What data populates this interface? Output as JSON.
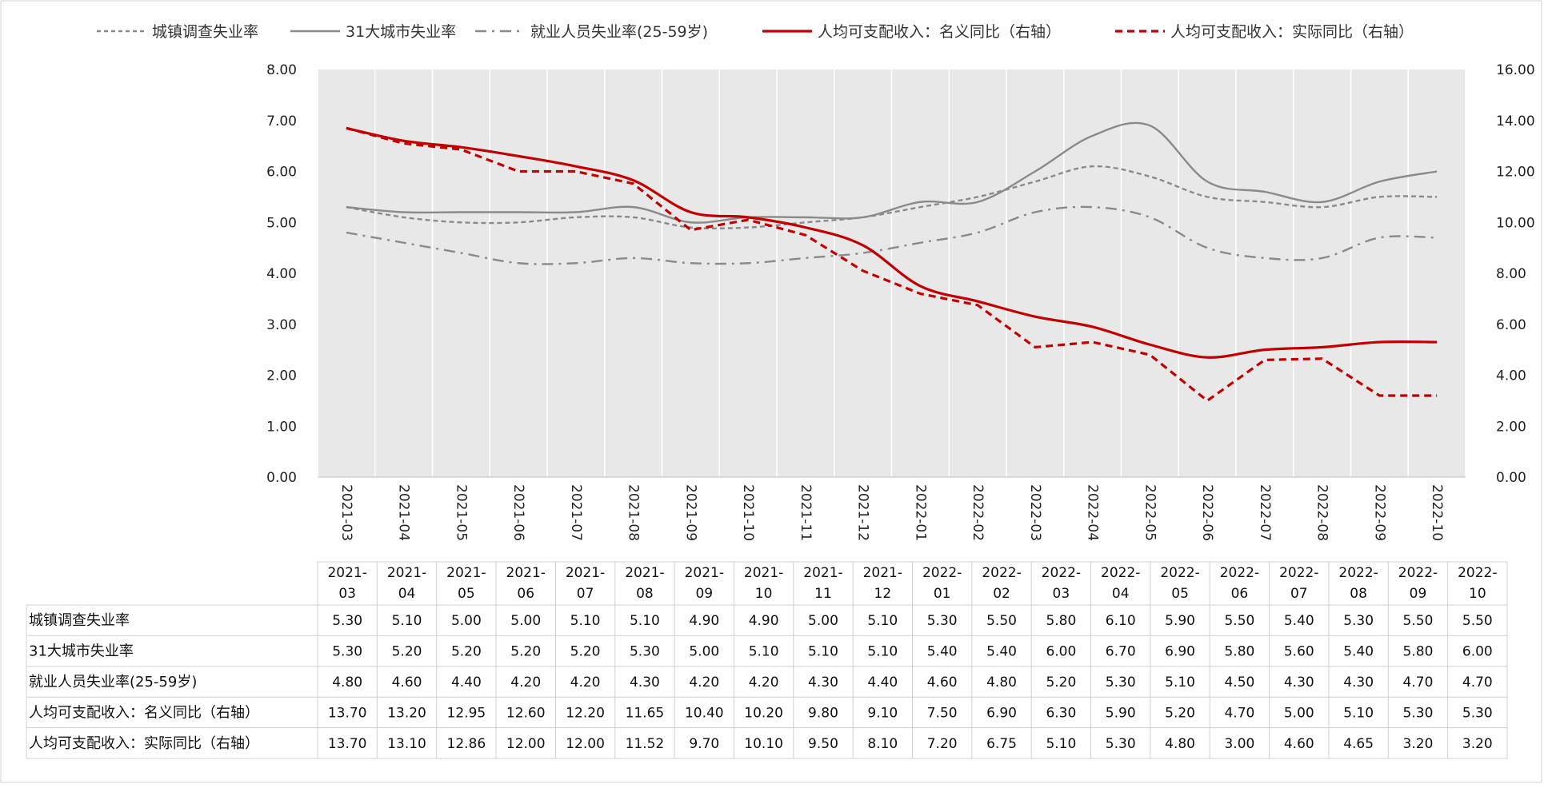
{
  "chart_data": {
    "type": "line",
    "categories": [
      "2021-03",
      "2021-04",
      "2021-05",
      "2021-06",
      "2021-07",
      "2021-08",
      "2021-09",
      "2021-10",
      "2021-11",
      "2021-12",
      "2022-01",
      "2022-02",
      "2022-03",
      "2022-04",
      "2022-05",
      "2022-06",
      "2022-07",
      "2022-08",
      "2022-09",
      "2022-10"
    ],
    "categories_table": [
      [
        "2021-",
        "03"
      ],
      [
        "2021-",
        "04"
      ],
      [
        "2021-",
        "05"
      ],
      [
        "2021-",
        "06"
      ],
      [
        "2021-",
        "07"
      ],
      [
        "2021-",
        "08"
      ],
      [
        "2021-",
        "09"
      ],
      [
        "2021-",
        "10"
      ],
      [
        "2021-",
        "11"
      ],
      [
        "2021-",
        "12"
      ],
      [
        "2022-",
        "01"
      ],
      [
        "2022-",
        "02"
      ],
      [
        "2022-",
        "03"
      ],
      [
        "2022-",
        "04"
      ],
      [
        "2022-",
        "05"
      ],
      [
        "2022-",
        "06"
      ],
      [
        "2022-",
        "07"
      ],
      [
        "2022-",
        "08"
      ],
      [
        "2022-",
        "09"
      ],
      [
        "2022-",
        "10"
      ]
    ],
    "series": [
      {
        "name": "城镇调查失业率",
        "axis": "left",
        "style": "dashed",
        "color": "#8a8a8a",
        "values": [
          5.3,
          5.1,
          5.0,
          5.0,
          5.1,
          5.1,
          4.9,
          4.9,
          5.0,
          5.1,
          5.3,
          5.5,
          5.8,
          6.1,
          5.9,
          5.5,
          5.4,
          5.3,
          5.5,
          5.5
        ],
        "labels": [
          "5.30",
          "5.10",
          "5.00",
          "5.00",
          "5.10",
          "5.10",
          "4.90",
          "4.90",
          "5.00",
          "5.10",
          "5.30",
          "5.50",
          "5.80",
          "6.10",
          "5.90",
          "5.50",
          "5.40",
          "5.30",
          "5.50",
          "5.50"
        ]
      },
      {
        "name": "31大城市失业率",
        "axis": "left",
        "style": "solid",
        "color": "#8a8a8a",
        "values": [
          5.3,
          5.2,
          5.2,
          5.2,
          5.2,
          5.3,
          5.0,
          5.1,
          5.1,
          5.1,
          5.4,
          5.4,
          6.0,
          6.7,
          6.9,
          5.8,
          5.6,
          5.4,
          5.8,
          6.0
        ],
        "labels": [
          "5.30",
          "5.20",
          "5.20",
          "5.20",
          "5.20",
          "5.30",
          "5.00",
          "5.10",
          "5.10",
          "5.10",
          "5.40",
          "5.40",
          "6.00",
          "6.70",
          "6.90",
          "5.80",
          "5.60",
          "5.40",
          "5.80",
          "6.00"
        ]
      },
      {
        "name": "就业人员失业率(25-59岁)",
        "axis": "left",
        "style": "dashdot",
        "color": "#8a8a8a",
        "values": [
          4.8,
          4.6,
          4.4,
          4.2,
          4.2,
          4.3,
          4.2,
          4.2,
          4.3,
          4.4,
          4.6,
          4.8,
          5.2,
          5.3,
          5.1,
          4.5,
          4.3,
          4.3,
          4.7,
          4.7
        ],
        "labels": [
          "4.80",
          "4.60",
          "4.40",
          "4.20",
          "4.20",
          "4.30",
          "4.20",
          "4.20",
          "4.30",
          "4.40",
          "4.60",
          "4.80",
          "5.20",
          "5.30",
          "5.10",
          "4.50",
          "4.30",
          "4.30",
          "4.70",
          "4.70"
        ]
      },
      {
        "name": "人均可支配收入：名义同比（右轴）",
        "axis": "right",
        "style": "solid",
        "color": "#c00000",
        "values": [
          13.7,
          13.2,
          12.95,
          12.6,
          12.2,
          11.65,
          10.4,
          10.2,
          9.8,
          9.1,
          7.5,
          6.9,
          6.3,
          5.9,
          5.2,
          4.7,
          5.0,
          5.1,
          5.3,
          5.3
        ],
        "labels": [
          "13.70",
          "13.20",
          "12.95",
          "12.60",
          "12.20",
          "11.65",
          "10.40",
          "10.20",
          "9.80",
          "9.10",
          "7.50",
          "6.90",
          "6.30",
          "5.90",
          "5.20",
          "4.70",
          "5.00",
          "5.10",
          "5.30",
          "5.30"
        ]
      },
      {
        "name": "人均可支配收入：实际同比（右轴）",
        "axis": "right",
        "style": "dashed",
        "color": "#c00000",
        "values": [
          13.7,
          13.1,
          12.86,
          12.0,
          12.0,
          11.52,
          9.7,
          10.1,
          9.5,
          8.1,
          7.2,
          6.75,
          5.1,
          5.3,
          4.8,
          3.0,
          4.6,
          4.65,
          3.2,
          3.2
        ],
        "labels": [
          "13.70",
          "13.10",
          "12.86",
          "12.00",
          "12.00",
          "11.52",
          "9.70",
          "10.10",
          "9.50",
          "8.10",
          "7.20",
          "6.75",
          "5.10",
          "5.30",
          "4.80",
          "3.00",
          "4.60",
          "4.65",
          "3.20",
          "3.20"
        ]
      }
    ],
    "y_left": {
      "range": [
        0,
        8
      ],
      "ticks": [
        "0.00",
        "1.00",
        "2.00",
        "3.00",
        "4.00",
        "5.00",
        "6.00",
        "7.00",
        "8.00"
      ]
    },
    "y_right": {
      "range": [
        0,
        16
      ],
      "ticks": [
        "0.00",
        "2.00",
        "4.00",
        "6.00",
        "8.00",
        "10.00",
        "12.00",
        "14.00",
        "16.00"
      ]
    },
    "grid": "vertical",
    "legend_position": "top",
    "data_table": true
  }
}
